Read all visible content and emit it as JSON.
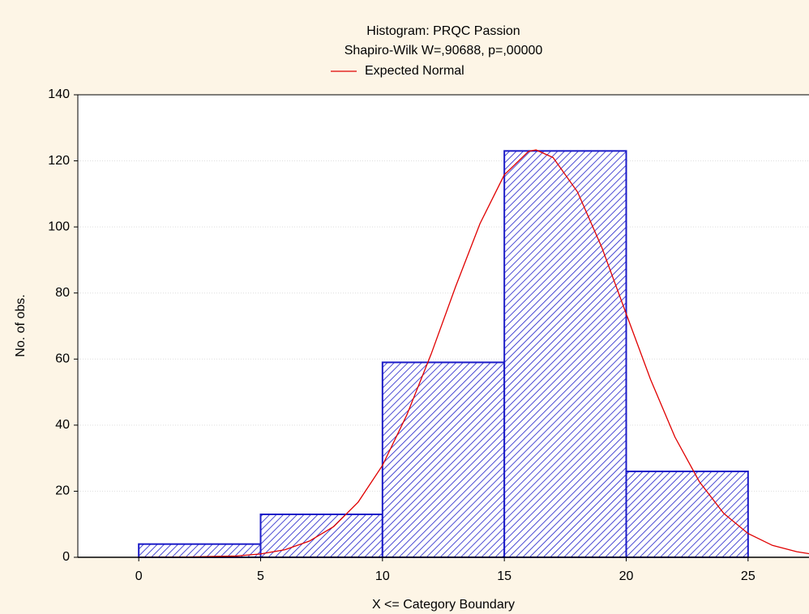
{
  "chart_data": {
    "type": "histogram",
    "title": "Histogram: PRQC Passion",
    "subtitle": "Shapiro-Wilk W=,90688, p=,00000",
    "x_label": "X <= Category Boundary",
    "y_label": "No. of obs.",
    "bins": [
      0,
      5,
      10,
      15,
      20,
      25
    ],
    "values": [
      4,
      13,
      59,
      123,
      26
    ],
    "color": "#1c1cc8",
    "hatch": true,
    "xlim": [
      -2.5,
      27.5
    ],
    "xticks": [
      0,
      5,
      10,
      15,
      20,
      25
    ],
    "ylim": [
      0,
      140
    ],
    "yticks": [
      0,
      20,
      40,
      60,
      80,
      100,
      120,
      140
    ],
    "grid": true,
    "legend_position": "top",
    "curves": [
      {
        "name": "Expected Normal",
        "color": "#e00000",
        "x": [
          0,
          2,
          4,
          5,
          6,
          7,
          8,
          9,
          10,
          11,
          12,
          13,
          14,
          15,
          16,
          16.3,
          17,
          18,
          19,
          20,
          21,
          22,
          23,
          24,
          25,
          26,
          27,
          27.5
        ],
        "values": [
          0.0,
          0.1,
          0.4,
          1.0,
          2.3,
          4.9,
          9.3,
          16.7,
          27.8,
          43.1,
          61.6,
          81.9,
          101,
          115.8,
          122.9,
          123.3,
          121.0,
          110.6,
          93.8,
          73.7,
          53.8,
          36.4,
          22.9,
          13.3,
          7.2,
          3.6,
          1.7,
          1.1
        ]
      }
    ]
  }
}
